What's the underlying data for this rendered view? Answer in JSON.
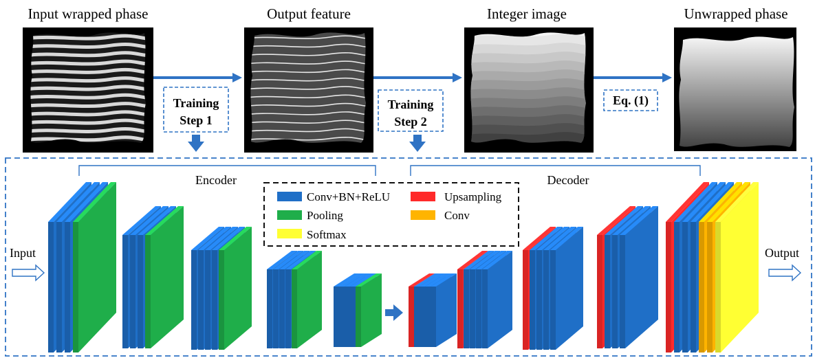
{
  "pipeline": {
    "panels": [
      {
        "title": "Input wrapped phase"
      },
      {
        "title": "Output feature"
      },
      {
        "title": "Integer image"
      },
      {
        "title": "Unwrapped phase"
      }
    ],
    "steps": {
      "step1": {
        "line1": "Training",
        "line2": "Step 1"
      },
      "step2": {
        "line1": "Training",
        "line2": "Step 2"
      },
      "eq": "Eq. (1)"
    }
  },
  "network": {
    "encoder_label": "Encoder",
    "decoder_label": "Decoder",
    "input_label": "Input",
    "output_label": "Output"
  },
  "legend": {
    "items": [
      {
        "label": "Conv+BN+ReLU",
        "color": "#1f6fc7"
      },
      {
        "label": "Upsampling",
        "color": "#ff2a2a"
      },
      {
        "label": "Pooling",
        "color": "#1fae4a"
      },
      {
        "label": "Conv",
        "color": "#ffb400"
      },
      {
        "label": "Softmax",
        "color": "#ffff33"
      }
    ]
  },
  "colors": {
    "arrow": "#2f73c4",
    "frame": "#2f73c4",
    "conv": "#1f6fc7",
    "conv_light": "#4a8fd8",
    "pool": "#1fae4a",
    "up": "#ff2a2a",
    "conv_final": "#ffb400",
    "softmax": "#ffff33"
  }
}
